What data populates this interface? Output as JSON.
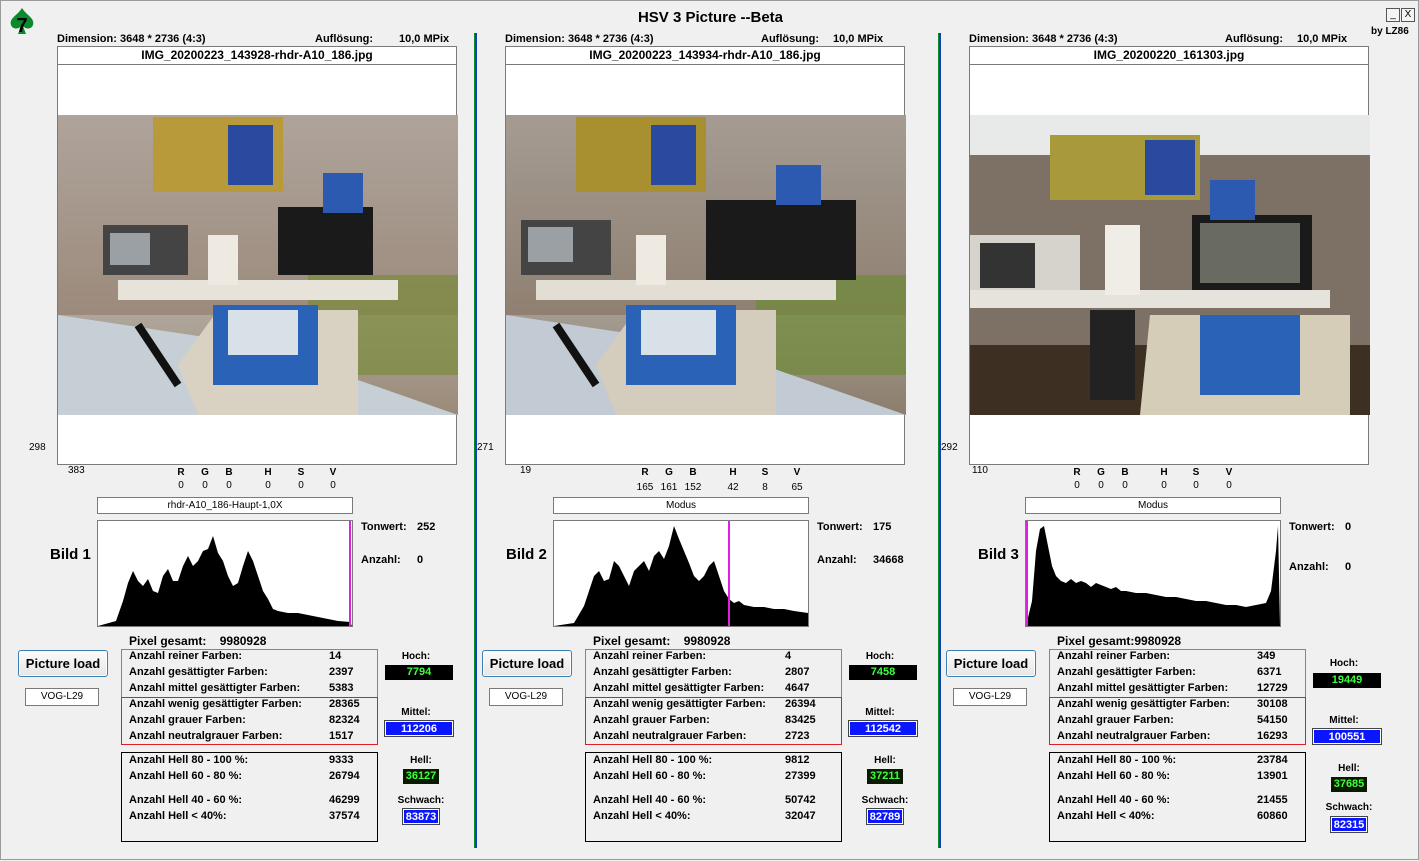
{
  "window": {
    "title": "HSV 3 Picture --Beta",
    "byline": "by LZ86",
    "min_label": "_",
    "close_label": "X",
    "app_icon": "spade-seven-icon"
  },
  "labels": {
    "dimension": "Dimension:",
    "aufloesung": "Auflösung:",
    "pixel_gesamt": "Pixel gesamt:",
    "tonwert": "Tonwert:",
    "anzahl": "Anzahl:",
    "picture_load": "Picture load",
    "hoch": "Hoch:",
    "mittel": "Mittel:",
    "hell": "Hell:",
    "schwach": "Schwach:",
    "rgb": [
      "R",
      "G",
      "B",
      "H",
      "S",
      "V"
    ],
    "green_rows": [
      "Anzahl reiner Farben:",
      "Anzahl gesättigter Farben:",
      "Anzahl mittel gesättigter Farben:"
    ],
    "red_rows": [
      "Anzahl wenig gesättigter Farben:",
      "Anzahl grauer Farben:",
      "Anzahl neutralgrauer Farben:"
    ],
    "black_rows": [
      "Anzahl Hell 80 - 100 %:",
      "Anzahl Hell 60 - 80 %:",
      "Anzahl Hell 40 - 60 %:",
      "Anzahl Hell < 40%:"
    ]
  },
  "panels": [
    {
      "bild": "Bild 1",
      "dimension": "3648 * 2736 (4:3)",
      "aufloesung": "10,0 MPix",
      "filename": "IMG_20200223_143928-rhdr-A10_186.jpg",
      "left_num": "298",
      "bottom_num": "383",
      "rgb_values": [
        "0",
        "0",
        "0",
        "0",
        "0",
        "0"
      ],
      "mode": "rhdr-A10_186-Haupt-1,0X",
      "tonwert": "252",
      "anzahl": "0",
      "pixel_gesamt": "9980928",
      "vog": "VOG-L29",
      "green_values": [
        "14",
        "2397",
        "5383"
      ],
      "red_values": [
        "28365",
        "82324",
        "1517"
      ],
      "black_values": [
        "9333",
        "26794",
        "46299",
        "37574"
      ],
      "hoch": "7794",
      "mittel": "112206",
      "hell": "36127",
      "schwach": "83873"
    },
    {
      "bild": "Bild 2",
      "dimension": "3648 * 2736 (4:3)",
      "aufloesung": "10,0 MPix",
      "filename": "IMG_20200223_143934-rhdr-A10_186.jpg",
      "left_num": "271",
      "bottom_num": "19",
      "rgb_values": [
        "165",
        "161",
        "152",
        "42",
        "8",
        "65"
      ],
      "mode": "Modus",
      "tonwert": "175",
      "anzahl": "34668",
      "pixel_gesamt": "9980928",
      "vog": "VOG-L29",
      "green_values": [
        "4",
        "2807",
        "4647"
      ],
      "red_values": [
        "26394",
        "83425",
        "2723"
      ],
      "black_values": [
        "9812",
        "27399",
        "50742",
        "32047"
      ],
      "hoch": "7458",
      "mittel": "112542",
      "hell": "37211",
      "schwach": "82789"
    },
    {
      "bild": "Bild 3",
      "dimension": "3648 * 2736 (4:3)",
      "aufloesung": "10,0 MPix",
      "filename": "IMG_20200220_161303.jpg",
      "left_num": "292",
      "bottom_num": "110",
      "rgb_values": [
        "0",
        "0",
        "0",
        "0",
        "0",
        "0"
      ],
      "mode": "Modus",
      "tonwert": "0",
      "anzahl": "0",
      "pixel_gesamt": "9980928",
      "vog": "VOG-L29",
      "green_values": [
        "349",
        "6371",
        "12729"
      ],
      "red_values": [
        "30108",
        "54150",
        "16293"
      ],
      "black_values": [
        "23784",
        "13901",
        "21455",
        "60860"
      ],
      "hoch": "19449",
      "mittel": "100551",
      "hell": "37685",
      "schwach": "82315"
    }
  ]
}
